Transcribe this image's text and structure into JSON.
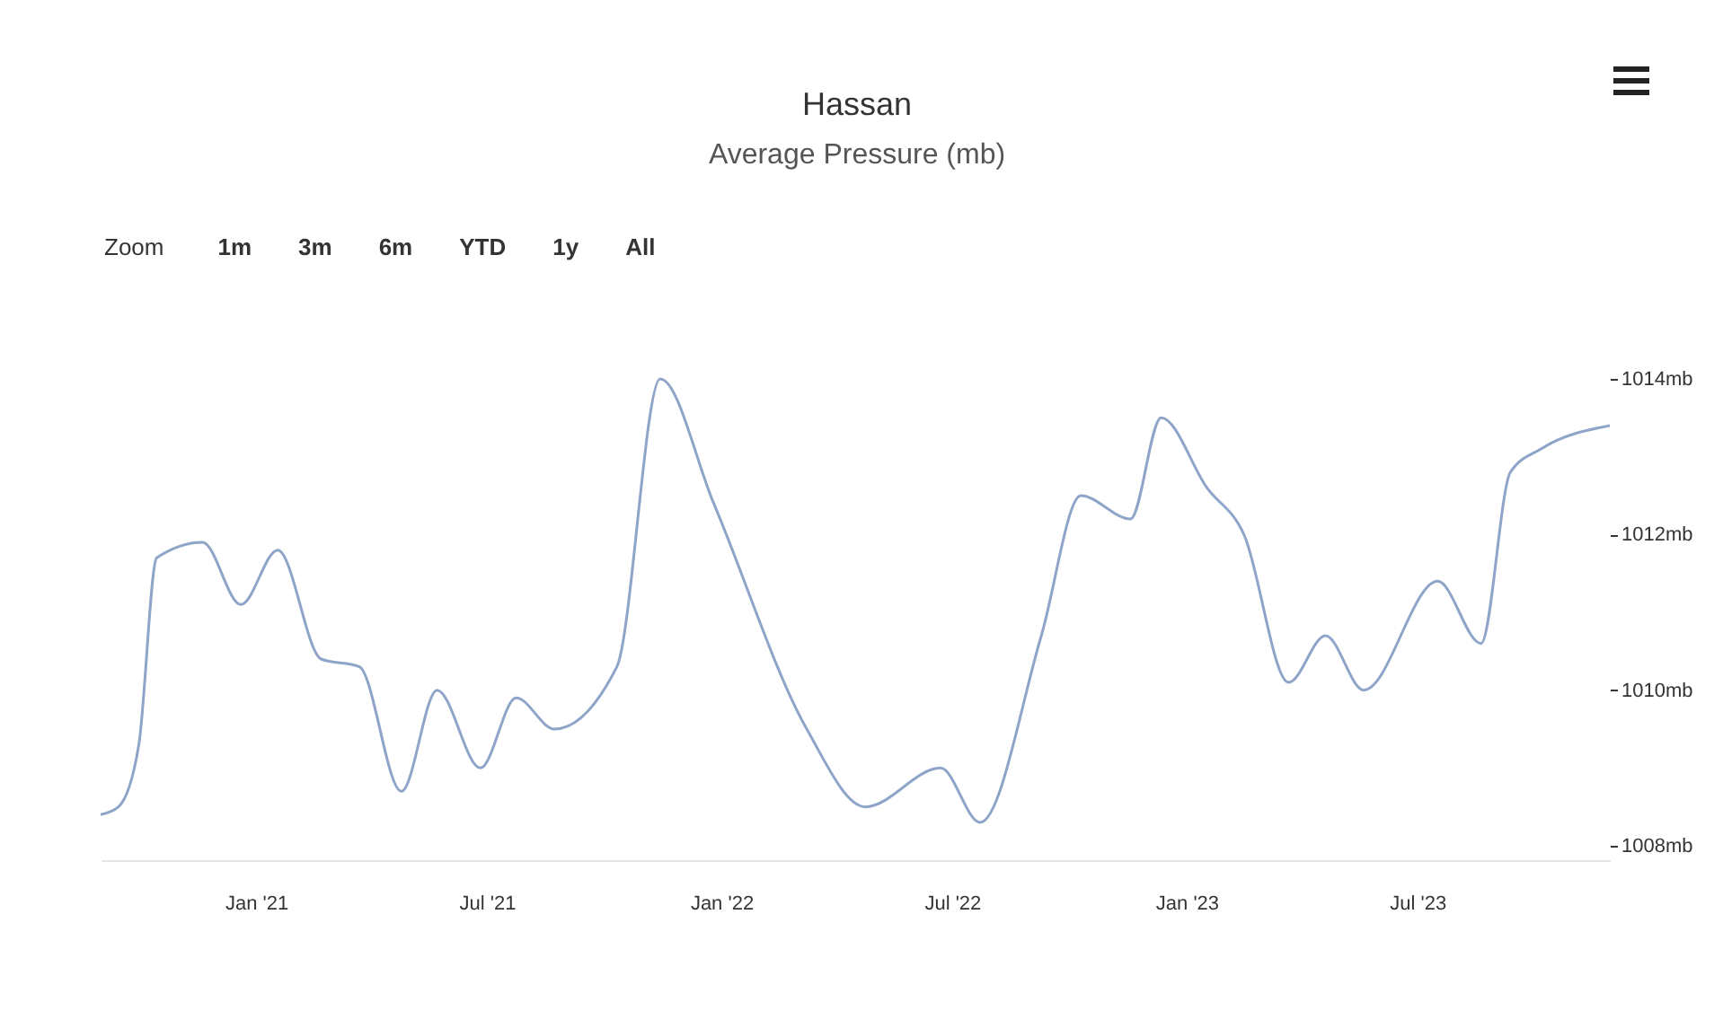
{
  "chart_data": {
    "type": "line",
    "title": "Hassan",
    "subtitle": "Average Pressure (mb)",
    "annotations": [
      "Zoom",
      "1m",
      "3m",
      "6m",
      "YTD",
      "1y",
      "All"
    ],
    "x": [
      "2020-09-01",
      "2020-09-15",
      "2020-10-01",
      "2020-10-15",
      "2020-11-20",
      "2020-12-20",
      "2021-01-18",
      "2021-02-21",
      "2021-03-23",
      "2021-04-25",
      "2021-05-23",
      "2021-06-26",
      "2021-07-24",
      "2021-08-23",
      "2021-10-11",
      "2021-11-14",
      "2021-12-26",
      "2022-03-09",
      "2022-04-24",
      "2022-06-22",
      "2022-07-23",
      "2022-09-09",
      "2022-10-10",
      "2022-11-18",
      "2022-12-12",
      "2023-01-17",
      "2023-02-15",
      "2023-03-22",
      "2023-04-20",
      "2023-05-20",
      "2023-07-17",
      "2023-08-20",
      "2023-09-12",
      "2023-10-06",
      "2023-11-29"
    ],
    "series": [
      {
        "color": "#8ea4c8",
        "values": [
          1008.4,
          1008.5,
          1009.3,
          1011.7,
          1011.9,
          1011.1,
          1011.8,
          1010.4,
          1010.3,
          1008.7,
          1010.0,
          1009.0,
          1009.9,
          1009.5,
          1010.3,
          1014.0,
          1012.4,
          1009.5,
          1008.5,
          1009.0,
          1008.3,
          1010.7,
          1012.5,
          1012.2,
          1013.5,
          1012.6,
          1012.0,
          1010.1,
          1010.7,
          1010.0,
          1011.4,
          1010.6,
          1012.8,
          1013.1,
          1013.4
        ]
      }
    ],
    "xticks": [
      {
        "value": "2021-01-01",
        "label": "Jan '21"
      },
      {
        "value": "2021-07-01",
        "label": "Jul '21"
      },
      {
        "value": "2022-01-01",
        "label": "Jan '22"
      },
      {
        "value": "2022-07-01",
        "label": "Jul '22"
      },
      {
        "value": "2023-01-01",
        "label": "Jan '23"
      },
      {
        "value": "2023-07-01",
        "label": "Jul '23"
      }
    ],
    "xlim": [
      "2020-09-01",
      "2023-11-29"
    ],
    "ylim": [
      1008,
      1014
    ],
    "yticks": [
      {
        "value": 1008,
        "label": "1008mb"
      },
      {
        "value": 1010,
        "label": "1010mb"
      },
      {
        "value": 1012,
        "label": "1012mb"
      },
      {
        "value": 1014,
        "label": "1014mb"
      }
    ],
    "marker": "none",
    "line_style": "solid",
    "legend": false
  }
}
